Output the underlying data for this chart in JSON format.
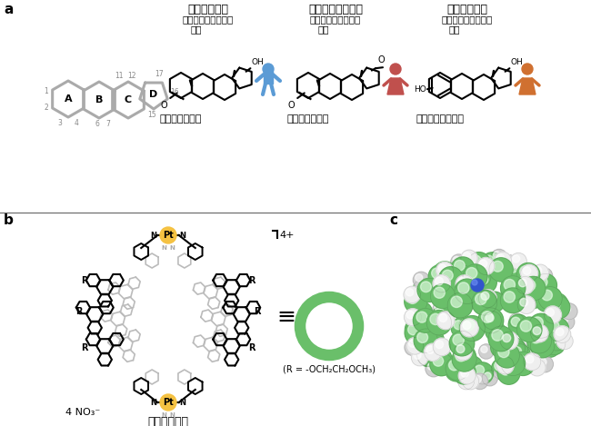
{
  "panel_a_label": "a",
  "panel_b_label": "b",
  "panel_c_label": "c",
  "title_androgen": "アンドロゲン",
  "subtitle_androgen": "（＝男性ホルモン）",
  "example_androgen": "例）",
  "name_androgen": "テストステロン",
  "title_progestogen": "プロゲストーゲン",
  "subtitle_progestogen": "（＝女性ホルモン）",
  "example_progestogen": "例）",
  "name_progestogen": "プロゲステロン",
  "title_estrogen": "エストロゲン",
  "subtitle_estrogen": "（＝女性ホルモン）",
  "example_estrogen": "例）",
  "name_estrogen": "エストラジオール",
  "label_capsule": "分子カプセル",
  "charge_label": "4+",
  "counterion_label": "4 NO₃⁻",
  "r_label": "R",
  "r_definition": "(R = -OCH₂CH₂OCH₃)",
  "ring_color": "#6abf6a",
  "pt_color": "#f5c242",
  "bg_color": "#ffffff",
  "blue_icon_color": "#5b9bd5",
  "red_icon_color": "#c0504d",
  "orange_icon_color": "#d07030",
  "steroid_gray": "#aaaaaa",
  "num_gray": "#888888"
}
